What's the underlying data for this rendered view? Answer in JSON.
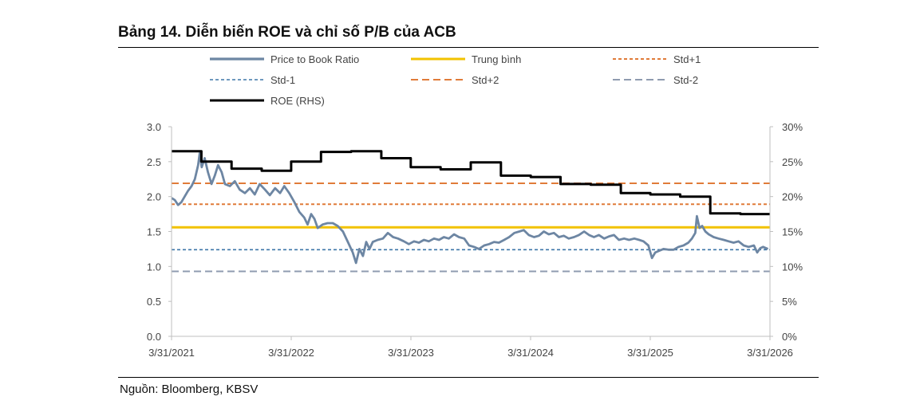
{
  "title": "Bảng 14. Diễn biến ROE và chỉ số P/B của ACB",
  "source": "Nguồn: Bloomberg, KBSV",
  "chart_data": {
    "type": "line",
    "title": "Bảng 14. Diễn biến ROE và chỉ số P/B của ACB",
    "x_ticks": [
      "3/31/2021",
      "3/31/2022",
      "3/31/2023",
      "3/31/2024",
      "3/31/2025",
      "3/31/2026"
    ],
    "xlim": [
      "2021-03-31",
      "2026-03-31"
    ],
    "ylim_left": [
      0,
      3.0
    ],
    "ylim_right": [
      0,
      30
    ],
    "y_ticks_left": [
      "0.0",
      "0.5",
      "1.0",
      "1.5",
      "2.0",
      "2.5",
      "3.0"
    ],
    "y_ticks_right": [
      "0%",
      "5%",
      "10%",
      "15%",
      "20%",
      "25%",
      "30%"
    ],
    "grid": false,
    "legend_position": "top",
    "colors": {
      "pb": "#6d86a3",
      "mean": "#f2c200",
      "std_plus": "#e07b39",
      "std_minus1": "#3d76a8",
      "std_minus2": "#8f9bb0",
      "roe": "#000000"
    },
    "legend": [
      {
        "key": "pb",
        "label": "Price to Book Ratio",
        "style": "solid"
      },
      {
        "key": "mean",
        "label": "Trung bình",
        "style": "solid"
      },
      {
        "key": "std_p1",
        "label": "Std+1",
        "style": "dashed-small"
      },
      {
        "key": "std_m1",
        "label": "Std-1",
        "style": "dashed-small"
      },
      {
        "key": "std_p2",
        "label": "Std+2",
        "style": "dashed-large"
      },
      {
        "key": "std_m2",
        "label": "Std-2",
        "style": "dashed-large"
      },
      {
        "key": "roe",
        "label": "ROE (RHS)",
        "style": "solid"
      }
    ],
    "reference_lines": [
      {
        "name": "Trung bình",
        "value": 1.56
      },
      {
        "name": "Std+1",
        "value": 1.89
      },
      {
        "name": "Std+2",
        "value": 2.19
      },
      {
        "name": "Std-1",
        "value": 1.24
      },
      {
        "name": "Std-2",
        "value": 0.93
      }
    ],
    "series": [
      {
        "name": "Price to Book Ratio",
        "axis": "left",
        "points": [
          [
            "2021-03-31",
            1.98
          ],
          [
            "2021-04-10",
            1.95
          ],
          [
            "2021-04-20",
            1.88
          ],
          [
            "2021-04-30",
            1.92
          ],
          [
            "2021-05-10",
            2.0
          ],
          [
            "2021-05-20",
            2.08
          ],
          [
            "2021-05-31",
            2.15
          ],
          [
            "2021-06-10",
            2.25
          ],
          [
            "2021-06-20",
            2.45
          ],
          [
            "2021-06-25",
            2.62
          ],
          [
            "2021-07-01",
            2.42
          ],
          [
            "2021-07-10",
            2.55
          ],
          [
            "2021-07-20",
            2.35
          ],
          [
            "2021-07-31",
            2.18
          ],
          [
            "2021-08-10",
            2.3
          ],
          [
            "2021-08-20",
            2.45
          ],
          [
            "2021-08-31",
            2.35
          ],
          [
            "2021-09-10",
            2.18
          ],
          [
            "2021-09-25",
            2.15
          ],
          [
            "2021-10-10",
            2.22
          ],
          [
            "2021-10-25",
            2.1
          ],
          [
            "2021-11-10",
            2.05
          ],
          [
            "2021-11-25",
            2.12
          ],
          [
            "2021-12-10",
            2.03
          ],
          [
            "2021-12-25",
            2.18
          ],
          [
            "2022-01-10",
            2.1
          ],
          [
            "2022-01-25",
            2.02
          ],
          [
            "2022-02-10",
            2.12
          ],
          [
            "2022-02-25",
            2.05
          ],
          [
            "2022-03-10",
            2.15
          ],
          [
            "2022-03-25",
            2.05
          ],
          [
            "2022-04-10",
            1.92
          ],
          [
            "2022-04-25",
            1.78
          ],
          [
            "2022-05-10",
            1.7
          ],
          [
            "2022-05-20",
            1.6
          ],
          [
            "2022-05-31",
            1.75
          ],
          [
            "2022-06-10",
            1.68
          ],
          [
            "2022-06-20",
            1.55
          ],
          [
            "2022-07-05",
            1.6
          ],
          [
            "2022-07-20",
            1.62
          ],
          [
            "2022-08-05",
            1.62
          ],
          [
            "2022-08-20",
            1.58
          ],
          [
            "2022-09-05",
            1.5
          ],
          [
            "2022-09-20",
            1.35
          ],
          [
            "2022-10-05",
            1.2
          ],
          [
            "2022-10-15",
            1.05
          ],
          [
            "2022-10-25",
            1.25
          ],
          [
            "2022-11-05",
            1.15
          ],
          [
            "2022-11-15",
            1.35
          ],
          [
            "2022-11-25",
            1.25
          ],
          [
            "2022-12-05",
            1.35
          ],
          [
            "2022-12-20",
            1.38
          ],
          [
            "2023-01-05",
            1.4
          ],
          [
            "2023-01-20",
            1.48
          ],
          [
            "2023-02-05",
            1.42
          ],
          [
            "2023-02-20",
            1.4
          ],
          [
            "2023-03-10",
            1.36
          ],
          [
            "2023-03-25",
            1.32
          ],
          [
            "2023-04-10",
            1.36
          ],
          [
            "2023-04-25",
            1.34
          ],
          [
            "2023-05-10",
            1.38
          ],
          [
            "2023-05-25",
            1.36
          ],
          [
            "2023-06-10",
            1.4
          ],
          [
            "2023-06-25",
            1.38
          ],
          [
            "2023-07-10",
            1.42
          ],
          [
            "2023-07-25",
            1.4
          ],
          [
            "2023-08-10",
            1.46
          ],
          [
            "2023-08-25",
            1.42
          ],
          [
            "2023-09-10",
            1.4
          ],
          [
            "2023-09-25",
            1.3
          ],
          [
            "2023-10-10",
            1.28
          ],
          [
            "2023-10-25",
            1.25
          ],
          [
            "2023-11-10",
            1.3
          ],
          [
            "2023-11-25",
            1.32
          ],
          [
            "2023-12-10",
            1.35
          ],
          [
            "2023-12-25",
            1.34
          ],
          [
            "2024-01-10",
            1.38
          ],
          [
            "2024-01-25",
            1.42
          ],
          [
            "2024-02-10",
            1.48
          ],
          [
            "2024-02-25",
            1.5
          ],
          [
            "2024-03-10",
            1.52
          ],
          [
            "2024-03-25",
            1.45
          ],
          [
            "2024-04-10",
            1.42
          ],
          [
            "2024-04-25",
            1.44
          ],
          [
            "2024-05-10",
            1.5
          ],
          [
            "2024-05-25",
            1.46
          ],
          [
            "2024-06-10",
            1.48
          ],
          [
            "2024-06-25",
            1.42
          ],
          [
            "2024-07-10",
            1.44
          ],
          [
            "2024-07-25",
            1.4
          ],
          [
            "2024-08-10",
            1.42
          ],
          [
            "2024-08-25",
            1.45
          ],
          [
            "2024-09-10",
            1.5
          ],
          [
            "2024-09-25",
            1.45
          ],
          [
            "2024-10-10",
            1.42
          ],
          [
            "2024-10-25",
            1.45
          ],
          [
            "2024-11-10",
            1.4
          ],
          [
            "2024-11-25",
            1.43
          ],
          [
            "2024-12-10",
            1.45
          ],
          [
            "2024-12-25",
            1.38
          ],
          [
            "2025-01-10",
            1.4
          ],
          [
            "2025-01-25",
            1.38
          ],
          [
            "2025-02-10",
            1.4
          ],
          [
            "2025-02-25",
            1.38
          ],
          [
            "2025-03-10",
            1.36
          ],
          [
            "2025-03-25",
            1.3
          ],
          [
            "2025-04-05",
            1.12
          ],
          [
            "2025-04-15",
            1.2
          ],
          [
            "2025-04-25",
            1.22
          ],
          [
            "2025-05-10",
            1.25
          ],
          [
            "2025-05-25",
            1.24
          ],
          [
            "2025-06-10",
            1.24
          ],
          [
            "2025-06-25",
            1.28
          ],
          [
            "2025-07-10",
            1.3
          ],
          [
            "2025-07-25",
            1.34
          ],
          [
            "2025-08-05",
            1.4
          ],
          [
            "2025-08-15",
            1.48
          ],
          [
            "2025-08-20",
            1.72
          ],
          [
            "2025-08-28",
            1.55
          ],
          [
            "2025-09-05",
            1.58
          ],
          [
            "2025-09-15",
            1.5
          ],
          [
            "2025-09-25",
            1.46
          ],
          [
            "2025-10-10",
            1.42
          ],
          [
            "2025-10-25",
            1.4
          ],
          [
            "2025-11-10",
            1.38
          ],
          [
            "2025-11-25",
            1.36
          ],
          [
            "2025-12-10",
            1.34
          ],
          [
            "2025-12-25",
            1.36
          ],
          [
            "2026-01-10",
            1.3
          ],
          [
            "2026-01-25",
            1.28
          ],
          [
            "2026-02-10",
            1.3
          ],
          [
            "2026-02-20",
            1.2
          ],
          [
            "2026-03-01",
            1.26
          ],
          [
            "2026-03-10",
            1.28
          ],
          [
            "2026-03-25",
            1.25
          ]
        ]
      },
      {
        "name": "ROE (RHS)",
        "axis": "right",
        "step": true,
        "points": [
          [
            "2021-03-31",
            26.5
          ],
          [
            "2021-06-30",
            25.0
          ],
          [
            "2021-09-30",
            24.0
          ],
          [
            "2021-12-31",
            23.7
          ],
          [
            "2022-03-31",
            25.0
          ],
          [
            "2022-06-30",
            26.4
          ],
          [
            "2022-09-30",
            26.5
          ],
          [
            "2022-12-31",
            25.5
          ],
          [
            "2023-03-31",
            24.2
          ],
          [
            "2023-06-30",
            23.9
          ],
          [
            "2023-09-30",
            24.9
          ],
          [
            "2023-12-31",
            23.0
          ],
          [
            "2024-03-31",
            22.8
          ],
          [
            "2024-06-30",
            21.8
          ],
          [
            "2024-09-30",
            21.7
          ],
          [
            "2024-12-31",
            20.5
          ],
          [
            "2025-03-31",
            20.3
          ],
          [
            "2025-06-30",
            20.0
          ],
          [
            "2025-09-30",
            17.6
          ],
          [
            "2025-12-31",
            17.5
          ],
          [
            "2026-03-31",
            17.5
          ]
        ]
      }
    ]
  }
}
